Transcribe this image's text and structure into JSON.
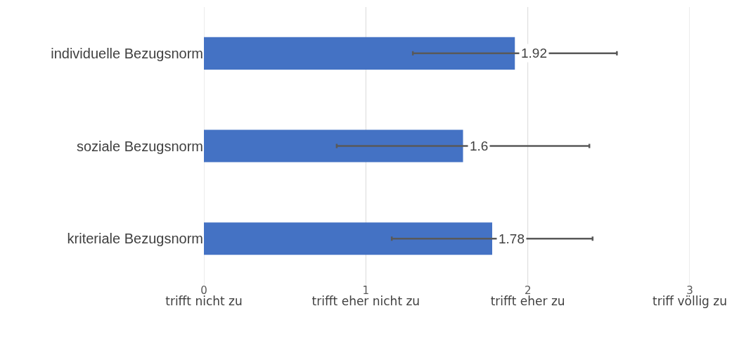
{
  "chart_data": {
    "type": "bar",
    "orientation": "horizontal",
    "categories": [
      "individuelle Bezugsnorm",
      "soziale Bezugsnorm",
      "kriteriale Bezugsnorm"
    ],
    "values": [
      1.92,
      1.6,
      1.78
    ],
    "errors": [
      0.63,
      0.78,
      0.62
    ],
    "color": "#4472c4",
    "data_labels": true,
    "xlim": [
      0,
      3
    ],
    "xticks": [
      {
        "value": 0,
        "label": "0\ntrifft nicht zu"
      },
      {
        "value": 1,
        "label": "1\ntrifft eher nicht zu"
      },
      {
        "value": 2,
        "label": "2\ntrifft eher zu"
      },
      {
        "value": 3,
        "label": "3\ntriff völlig zu"
      }
    ],
    "grid": "x"
  }
}
